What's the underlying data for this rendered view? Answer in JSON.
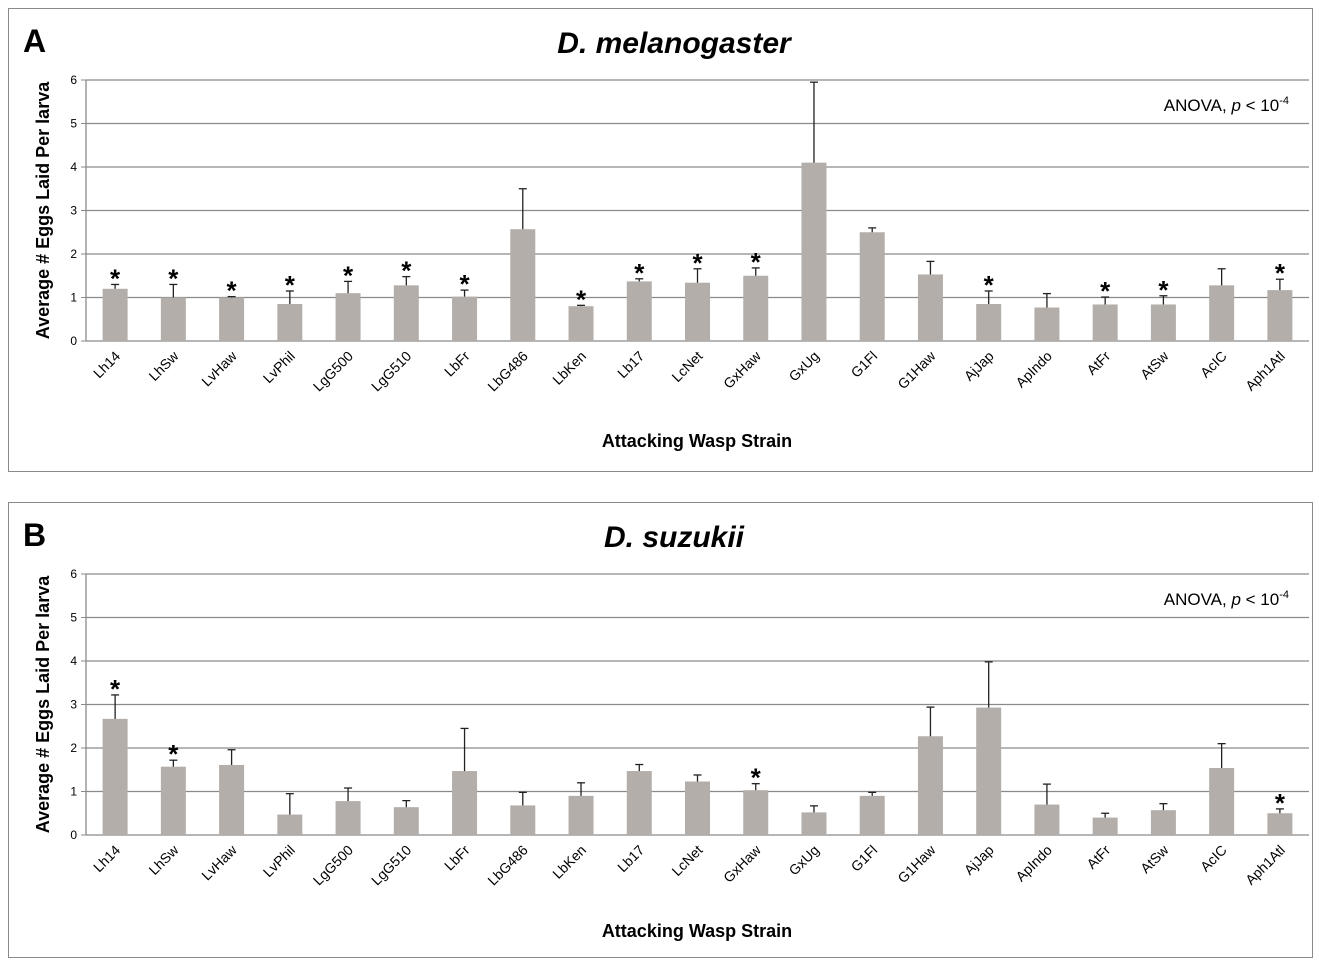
{
  "chart_data": [
    {
      "type": "bar",
      "panel_label": "A",
      "title": "D. melanogaster",
      "xlabel": "Attacking Wasp Strain",
      "ylabel": "Average # Eggs Laid Per larva",
      "ylim": [
        0,
        6
      ],
      "yticks": [
        "0",
        "1",
        "2",
        "3",
        "4",
        "5",
        "6"
      ],
      "grid": true,
      "bar_color": "#b4aeaa",
      "annotation": {
        "prefix": "ANOVA, ",
        "p": "p",
        "relation": " < 10",
        "exponent": "-4"
      },
      "categories": [
        "Lh14",
        "LhSw",
        "LvHaw",
        "LvPhil",
        "LgG500",
        "LgG510",
        "LbFr",
        "LbG486",
        "LbKen",
        "Lb17",
        "LcNet",
        "GxHaw",
        "GxUg",
        "G1Fl",
        "G1Haw",
        "AjJap",
        "ApIndo",
        "AtFr",
        "AtSw",
        "AcIC",
        "Aph1Atl"
      ],
      "values": [
        1.2,
        1.0,
        1.0,
        0.85,
        1.1,
        1.28,
        1.02,
        2.57,
        0.8,
        1.37,
        1.34,
        1.5,
        4.1,
        2.5,
        1.53,
        0.85,
        0.77,
        0.84,
        0.84,
        1.28,
        1.17
      ],
      "errors": [
        0.1,
        0.3,
        0.02,
        0.3,
        0.27,
        0.2,
        0.15,
        0.93,
        0.02,
        0.06,
        0.32,
        0.18,
        1.85,
        0.1,
        0.3,
        0.3,
        0.32,
        0.17,
        0.2,
        0.38,
        0.25
      ],
      "significant": [
        true,
        true,
        true,
        true,
        true,
        true,
        true,
        false,
        true,
        true,
        true,
        true,
        false,
        false,
        false,
        true,
        false,
        true,
        true,
        false,
        true
      ],
      "star_symbol": "*"
    },
    {
      "type": "bar",
      "panel_label": "B",
      "title": "D. suzukii",
      "xlabel": "Attacking Wasp Strain",
      "ylabel": "Average # Eggs Laid Per larva",
      "ylim": [
        0,
        6
      ],
      "yticks": [
        "0",
        "1",
        "2",
        "3",
        "4",
        "5",
        "6"
      ],
      "grid": true,
      "bar_color": "#b4aeaa",
      "annotation": {
        "prefix": "ANOVA, ",
        "p": "p",
        "relation": " < 10",
        "exponent": "-4"
      },
      "categories": [
        "Lh14",
        "LhSw",
        "LvHaw",
        "LvPhil",
        "LgG500",
        "LgG510",
        "LbFr",
        "LbG486",
        "LbKen",
        "Lb17",
        "LcNet",
        "GxHaw",
        "GxUg",
        "G1Fl",
        "G1Haw",
        "AjJap",
        "ApIndo",
        "AtFr",
        "AtSw",
        "AcIC",
        "Aph1Atl"
      ],
      "values": [
        2.67,
        1.57,
        1.61,
        0.47,
        0.78,
        0.64,
        1.47,
        0.68,
        0.9,
        1.47,
        1.23,
        1.03,
        0.52,
        0.9,
        2.27,
        2.93,
        0.7,
        0.4,
        0.57,
        1.54,
        0.5
      ],
      "errors": [
        0.55,
        0.15,
        0.35,
        0.48,
        0.3,
        0.15,
        0.98,
        0.3,
        0.3,
        0.15,
        0.15,
        0.15,
        0.15,
        0.08,
        0.67,
        1.05,
        0.47,
        0.1,
        0.15,
        0.56,
        0.1
      ],
      "significant": [
        true,
        true,
        false,
        false,
        false,
        false,
        false,
        false,
        false,
        false,
        false,
        true,
        false,
        false,
        false,
        false,
        false,
        false,
        false,
        false,
        true
      ],
      "star_symbol": "*"
    }
  ]
}
